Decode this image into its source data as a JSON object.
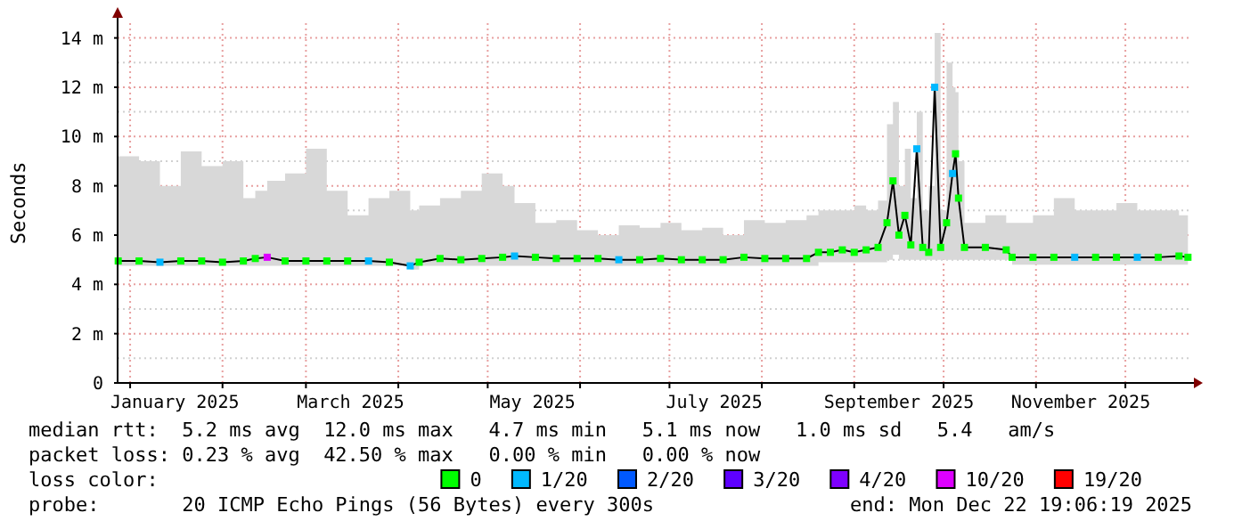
{
  "chart_data": {
    "type": "line",
    "ylabel": "Seconds",
    "legend_title": "loss color:",
    "legend": "bottom",
    "grid": true,
    "marker": "square",
    "line_style": "solid",
    "xlim": [
      "2024-12-27T19:06",
      "2025-12-22T19:06"
    ],
    "ylim": [
      0,
      14.6
    ],
    "yticks": [
      {
        "value": 0,
        "label": "0"
      },
      {
        "value": 1,
        "label": null
      },
      {
        "value": 2,
        "label": "2 m"
      },
      {
        "value": 3,
        "label": null
      },
      {
        "value": 4,
        "label": "4 m"
      },
      {
        "value": 5,
        "label": null
      },
      {
        "value": 6,
        "label": "6 m"
      },
      {
        "value": 7,
        "label": null
      },
      {
        "value": 8,
        "label": "8 m"
      },
      {
        "value": 9,
        "label": null
      },
      {
        "value": 10,
        "label": "10 m"
      },
      {
        "value": 11,
        "label": null
      },
      {
        "value": 12,
        "label": "12 m"
      },
      {
        "value": 13,
        "label": null
      },
      {
        "value": 14,
        "label": "14 m"
      }
    ],
    "xticks": [
      {
        "value": "2025-01-01",
        "label": null
      },
      {
        "value": "2025-01-16",
        "label": "January 2025"
      },
      {
        "value": "2025-02-01",
        "label": null
      },
      {
        "value": "2025-03-01",
        "label": null
      },
      {
        "value": "2025-03-16",
        "label": "March 2025"
      },
      {
        "value": "2025-04-01",
        "label": null
      },
      {
        "value": "2025-05-01",
        "label": null
      },
      {
        "value": "2025-05-16",
        "label": "May 2025"
      },
      {
        "value": "2025-06-01",
        "label": null
      },
      {
        "value": "2025-07-01",
        "label": null
      },
      {
        "value": "2025-07-16",
        "label": "July 2025"
      },
      {
        "value": "2025-08-01",
        "label": null
      },
      {
        "value": "2025-09-01",
        "label": null
      },
      {
        "value": "2025-09-16",
        "label": "September 2025"
      },
      {
        "value": "2025-10-01",
        "label": null
      },
      {
        "value": "2025-11-01",
        "label": null
      },
      {
        "value": "2025-11-16",
        "label": "November 2025"
      },
      {
        "value": "2025-12-01",
        "label": null
      }
    ],
    "series": [
      {
        "color": "#000000",
        "marker": "none",
        "x": [
          "2024-12-28",
          "2025-01-04",
          "2025-01-11",
          "2025-01-18",
          "2025-01-25",
          "2025-02-01",
          "2025-02-08",
          "2025-02-12",
          "2025-02-16",
          "2025-02-22",
          "2025-03-01",
          "2025-03-08",
          "2025-03-15",
          "2025-03-22",
          "2025-03-29",
          "2025-04-05",
          "2025-04-08",
          "2025-04-15",
          "2025-04-22",
          "2025-04-29",
          "2025-05-06",
          "2025-05-10",
          "2025-05-17",
          "2025-05-24",
          "2025-05-31",
          "2025-06-07",
          "2025-06-14",
          "2025-06-21",
          "2025-06-28",
          "2025-07-05",
          "2025-07-12",
          "2025-07-19",
          "2025-07-26",
          "2025-08-02",
          "2025-08-09",
          "2025-08-16",
          "2025-08-20",
          "2025-08-24",
          "2025-08-28",
          "2025-09-01",
          "2025-09-05",
          "2025-09-09",
          "2025-09-12",
          "2025-09-14",
          "2025-09-16",
          "2025-09-18",
          "2025-09-20",
          "2025-09-22",
          "2025-09-24",
          "2025-09-26",
          "2025-09-28",
          "2025-09-30",
          "2025-10-02",
          "2025-10-04",
          "2025-10-05",
          "2025-10-06",
          "2025-10-08",
          "2025-10-15",
          "2025-10-22",
          "2025-10-24",
          "2025-10-31",
          "2025-11-07",
          "2025-11-14",
          "2025-11-21",
          "2025-11-28",
          "2025-12-05",
          "2025-12-12",
          "2025-12-19",
          "2025-12-22"
        ],
        "values": [
          4.95,
          4.95,
          4.9,
          4.95,
          4.95,
          4.9,
          4.95,
          5.05,
          5.1,
          4.95,
          4.95,
          4.95,
          4.95,
          4.95,
          4.9,
          4.75,
          4.9,
          5.05,
          5.0,
          5.05,
          5.1,
          5.15,
          5.1,
          5.05,
          5.05,
          5.05,
          5.0,
          5.0,
          5.05,
          5.0,
          5.0,
          5.0,
          5.1,
          5.05,
          5.05,
          5.05,
          5.3,
          5.3,
          5.4,
          5.3,
          5.4,
          5.5,
          6.5,
          8.2,
          6.0,
          6.8,
          5.6,
          9.5,
          5.5,
          5.3,
          12.0,
          5.5,
          6.5,
          8.5,
          9.3,
          7.5,
          5.5,
          5.5,
          5.4,
          5.1,
          5.1,
          5.1,
          5.1,
          5.1,
          5.1,
          5.1,
          5.1,
          5.15,
          5.1
        ],
        "lower": [
          4.75,
          4.75,
          4.75,
          4.75,
          4.75,
          4.75,
          4.75,
          4.75,
          4.75,
          4.75,
          4.75,
          4.75,
          4.75,
          4.75,
          4.75,
          4.6,
          4.75,
          4.75,
          4.75,
          4.75,
          4.75,
          4.75,
          4.75,
          4.75,
          4.75,
          4.75,
          4.75,
          4.75,
          4.75,
          4.75,
          4.75,
          4.75,
          4.75,
          4.75,
          4.75,
          4.75,
          4.9,
          4.9,
          4.9,
          4.9,
          4.9,
          4.9,
          5.0,
          5.2,
          5.0,
          5.0,
          5.0,
          5.0,
          5.0,
          5.0,
          5.0,
          5.0,
          5.0,
          5.0,
          5.0,
          5.0,
          5.0,
          5.0,
          5.0,
          4.8,
          4.8,
          4.8,
          4.8,
          4.8,
          4.8,
          4.8,
          4.8,
          4.8,
          4.8
        ],
        "upper": [
          9.2,
          9.0,
          8.0,
          9.4,
          8.8,
          9.0,
          7.5,
          7.8,
          8.2,
          8.5,
          9.5,
          7.8,
          6.8,
          7.5,
          7.8,
          7.0,
          7.2,
          7.5,
          7.8,
          8.5,
          8.0,
          7.3,
          6.5,
          6.6,
          6.2,
          6.0,
          6.4,
          6.3,
          6.5,
          6.2,
          6.3,
          6.0,
          6.6,
          6.5,
          6.6,
          6.8,
          7.0,
          7.0,
          7.0,
          7.2,
          7.0,
          7.4,
          10.5,
          11.4,
          8.0,
          9.5,
          7.5,
          11.0,
          7.0,
          8.0,
          14.2,
          7.0,
          13.0,
          12.0,
          11.8,
          9.0,
          6.5,
          6.8,
          6.5,
          6.5,
          6.8,
          7.5,
          7.0,
          7.0,
          7.3,
          7.0,
          7.0,
          6.8,
          6.8
        ]
      },
      {
        "type": "scatter",
        "name": "0",
        "color": "#00ff00",
        "x": [
          "2024-12-28",
          "2025-01-04",
          "2025-01-18",
          "2025-01-25",
          "2025-02-01",
          "2025-02-08",
          "2025-02-12",
          "2025-02-22",
          "2025-03-01",
          "2025-03-08",
          "2025-03-15",
          "2025-03-29",
          "2025-04-08",
          "2025-04-15",
          "2025-04-22",
          "2025-04-29",
          "2025-05-06",
          "2025-05-17",
          "2025-05-24",
          "2025-05-31",
          "2025-06-07",
          "2025-06-21",
          "2025-06-28",
          "2025-07-05",
          "2025-07-12",
          "2025-07-19",
          "2025-07-26",
          "2025-08-02",
          "2025-08-09",
          "2025-08-16",
          "2025-08-20",
          "2025-08-24",
          "2025-08-28",
          "2025-09-01",
          "2025-09-05",
          "2025-09-09",
          "2025-09-12",
          "2025-09-14",
          "2025-09-16",
          "2025-09-18",
          "2025-09-20",
          "2025-09-24",
          "2025-09-26",
          "2025-09-30",
          "2025-10-02",
          "2025-10-05",
          "2025-10-06",
          "2025-10-08",
          "2025-10-15",
          "2025-10-22",
          "2025-10-24",
          "2025-10-31",
          "2025-11-07",
          "2025-11-21",
          "2025-11-28",
          "2025-12-12",
          "2025-12-19",
          "2025-12-22"
        ],
        "values": [
          4.95,
          4.95,
          4.95,
          4.95,
          4.9,
          4.95,
          5.05,
          4.95,
          4.95,
          4.95,
          4.95,
          4.9,
          4.9,
          5.05,
          5.0,
          5.05,
          5.1,
          5.1,
          5.05,
          5.05,
          5.05,
          5.0,
          5.05,
          5.0,
          5.0,
          5.0,
          5.1,
          5.05,
          5.05,
          5.05,
          5.3,
          5.3,
          5.4,
          5.3,
          5.4,
          5.5,
          6.5,
          8.2,
          6.0,
          6.8,
          5.6,
          5.5,
          5.3,
          5.5,
          6.5,
          9.3,
          7.5,
          5.5,
          5.5,
          5.4,
          5.1,
          5.1,
          5.1,
          5.1,
          5.1,
          5.1,
          5.15,
          5.1
        ]
      },
      {
        "type": "scatter",
        "name": "1/20",
        "color": "#00b8ff",
        "x": [
          "2025-01-11",
          "2025-03-22",
          "2025-04-05",
          "2025-05-10",
          "2025-06-14",
          "2025-09-22",
          "2025-09-28",
          "2025-10-04",
          "2025-11-14",
          "2025-12-05"
        ],
        "values": [
          4.9,
          4.95,
          4.75,
          5.15,
          5.0,
          9.5,
          12.0,
          8.5,
          5.1,
          5.1
        ]
      },
      {
        "type": "scatter",
        "name": "2/20",
        "color": "#0059ff"
      },
      {
        "type": "scatter",
        "name": "3/20",
        "color": "#5e00ff"
      },
      {
        "type": "scatter",
        "name": "4/20",
        "color": "#7e00ff"
      },
      {
        "type": "scatter",
        "name": "10/20",
        "color": "#dd00ff",
        "x": [
          "2025-02-16"
        ],
        "values": [
          5.1
        ]
      },
      {
        "type": "scatter",
        "name": "19/20",
        "color": "#ff0000"
      }
    ],
    "annotations": [
      "median rtt:  5.2 ms avg  12.0 ms max   4.7 ms min   5.1 ms now   1.0 ms sd   5.4   am/s",
      "packet loss: 0.23 % avg  42.50 % max   0.00 % min   0.00 % now",
      "probe:       20 ICMP Echo Pings (56 Bytes) every 300s",
      "end: Mon Dec 22 19:06:19 2025"
    ]
  }
}
